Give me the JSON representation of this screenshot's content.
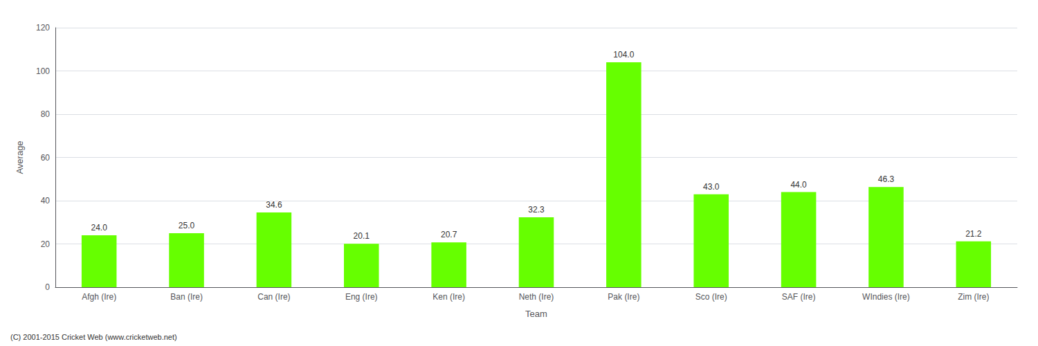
{
  "chart_data": {
    "type": "bar",
    "xlabel": "Team",
    "ylabel": "Average",
    "categories": [
      "Afgh (Ire)",
      "Ban (Ire)",
      "Can (Ire)",
      "Eng (Ire)",
      "Ken (Ire)",
      "Neth (Ire)",
      "Pak (Ire)",
      "Sco (Ire)",
      "SAF (Ire)",
      "WIndies (Ire)",
      "Zim (Ire)"
    ],
    "values": [
      24.0,
      25.0,
      34.6,
      20.1,
      20.7,
      32.3,
      104.0,
      43.0,
      44.0,
      46.3,
      21.2
    ],
    "value_labels": [
      "24.0",
      "25.0",
      "34.6",
      "20.1",
      "20.7",
      "32.3",
      "104.0",
      "43.0",
      "44.0",
      "46.3",
      "21.2"
    ],
    "data_labels": true,
    "color": "#66ff00",
    "ylim": [
      0,
      120
    ],
    "yticks": [
      0,
      20,
      40,
      60,
      80,
      100,
      120
    ],
    "grid": true,
    "annotations": [
      "(C) 2001-2015 Cricket Web (www.cricketweb.net)"
    ]
  }
}
